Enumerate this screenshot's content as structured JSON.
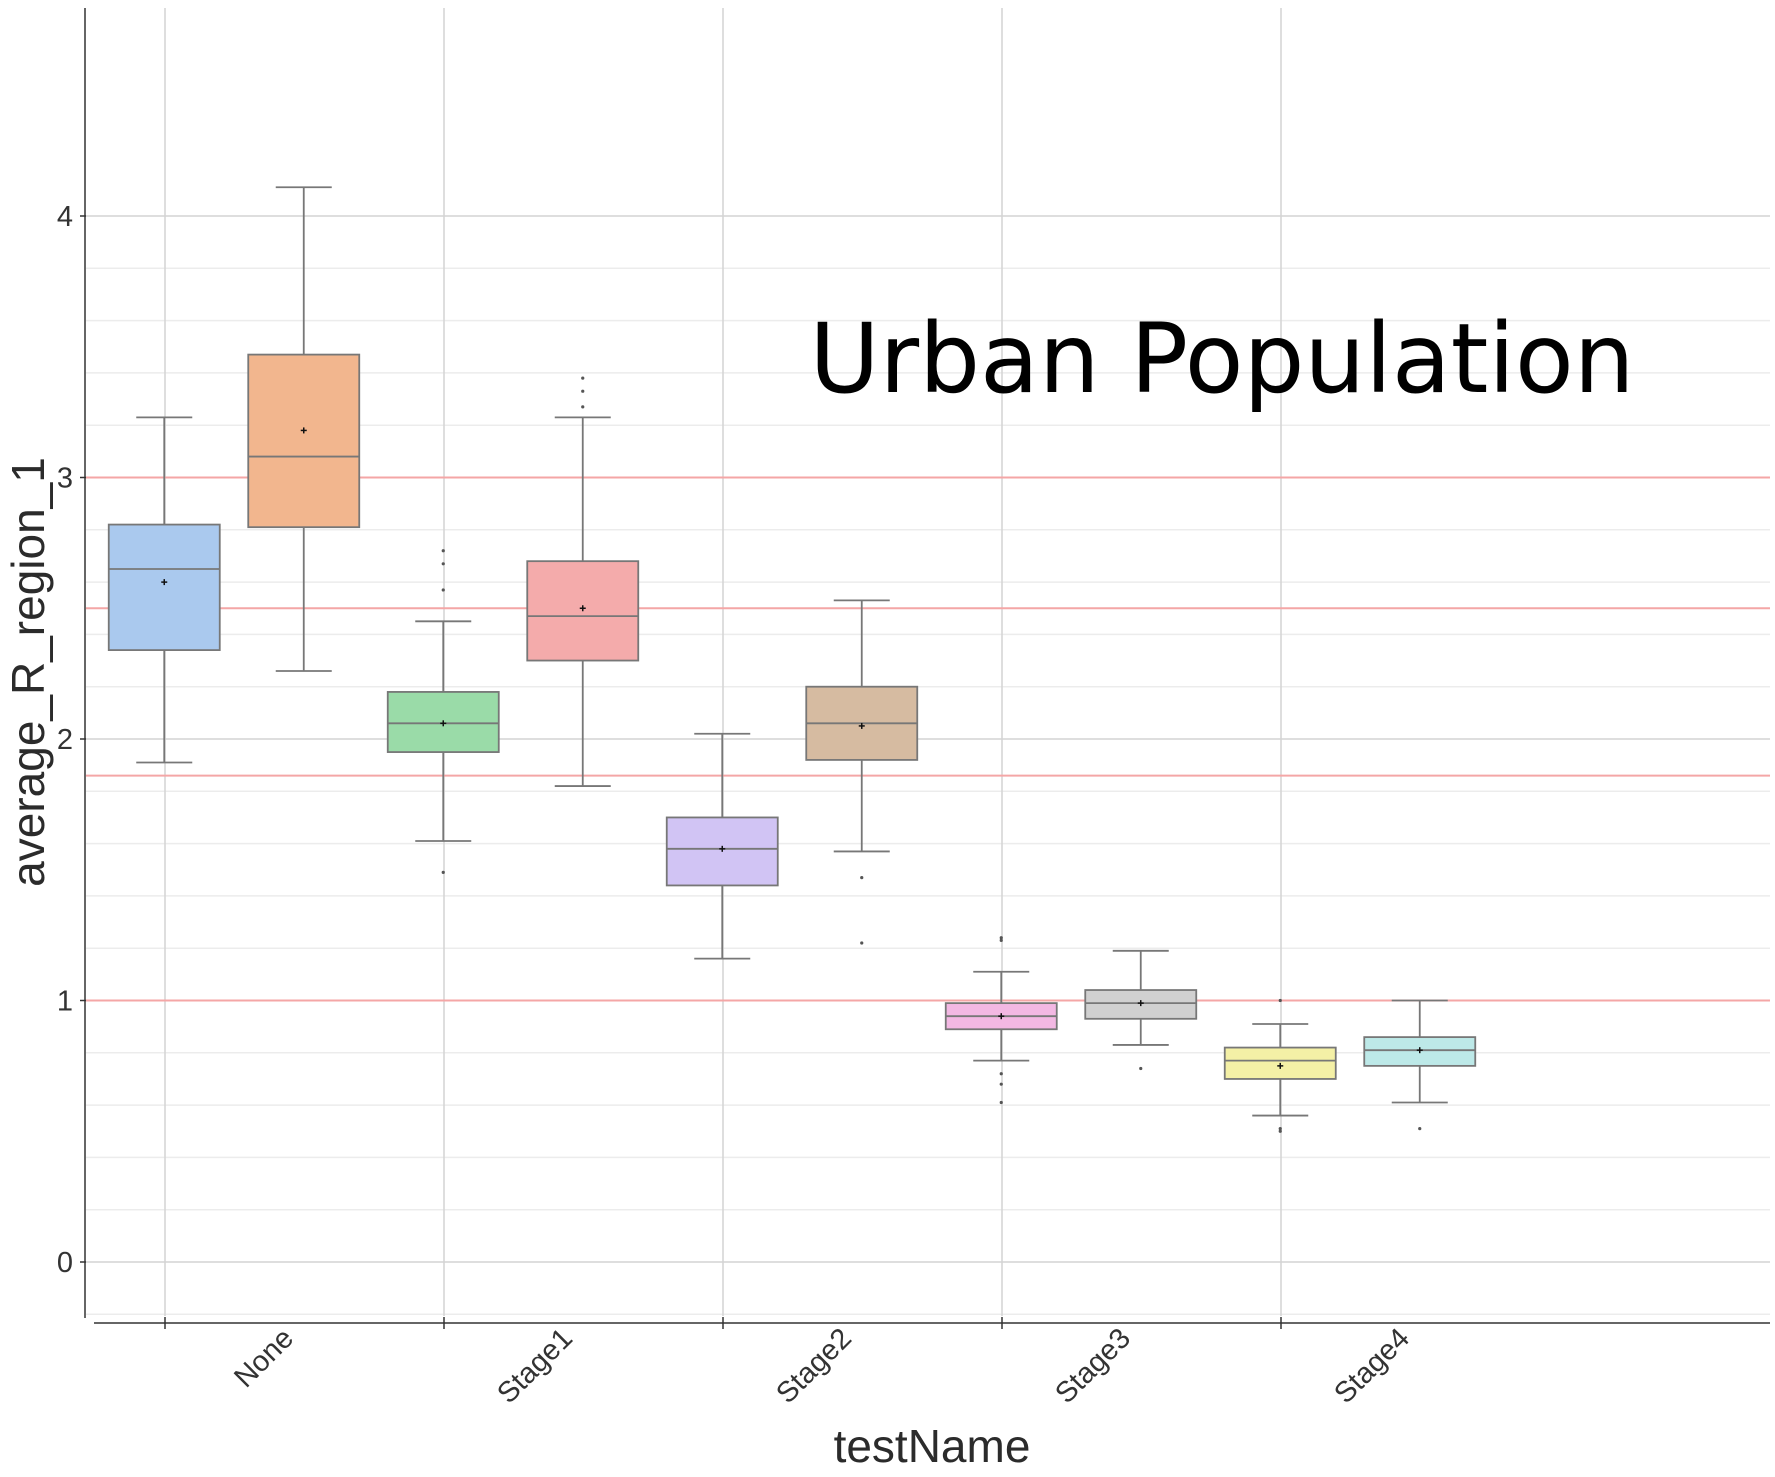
{
  "chart_data": {
    "type": "box",
    "title": "",
    "xlabel": "testName",
    "ylabel": "average_R_region_1",
    "annotation": "Urban Population",
    "categories": [
      "None",
      "Stage1",
      "Stage2",
      "Stage3",
      "Stage4"
    ],
    "yticks": [
      0,
      1,
      2,
      3,
      4
    ],
    "ylim": [
      -0.2,
      4.75
    ],
    "grid": true,
    "reference_lines": [
      1,
      1.86,
      2.5,
      3
    ],
    "reference_line_color": "#f4a6a6",
    "boxes": [
      {
        "category": "None",
        "position": 0,
        "color": "#aac9ee",
        "whisker_low": 1.91,
        "q1": 2.34,
        "median": 2.65,
        "q3": 2.82,
        "whisker_high": 3.23,
        "mean": 2.6,
        "outliers": []
      },
      {
        "category": "None",
        "position": 1,
        "color": "#f2b68e",
        "whisker_low": 2.26,
        "q1": 2.81,
        "median": 3.08,
        "q3": 3.47,
        "whisker_high": 4.11,
        "mean": 3.18,
        "outliers": []
      },
      {
        "category": "Stage1",
        "position": 0,
        "color": "#9adba8",
        "whisker_low": 1.61,
        "q1": 1.95,
        "median": 2.06,
        "q3": 2.18,
        "whisker_high": 2.45,
        "mean": 2.06,
        "outliers": [
          2.72,
          2.67,
          2.57,
          1.49
        ]
      },
      {
        "category": "Stage1",
        "position": 1,
        "color": "#f4abab",
        "whisker_low": 1.82,
        "q1": 2.3,
        "median": 2.47,
        "q3": 2.68,
        "whisker_high": 3.23,
        "mean": 2.5,
        "outliers": [
          3.38,
          3.33,
          3.27
        ]
      },
      {
        "category": "Stage2",
        "position": 0,
        "color": "#d1c4f4",
        "whisker_low": 1.16,
        "q1": 1.44,
        "median": 1.58,
        "q3": 1.7,
        "whisker_high": 2.02,
        "mean": 1.58,
        "outliers": []
      },
      {
        "category": "Stage2",
        "position": 1,
        "color": "#d6bba1",
        "whisker_low": 1.57,
        "q1": 1.92,
        "median": 2.06,
        "q3": 2.2,
        "whisker_high": 2.53,
        "mean": 2.05,
        "outliers": [
          1.47,
          1.22
        ]
      },
      {
        "category": "Stage3",
        "position": 0,
        "color": "#f3b8e3",
        "whisker_low": 0.77,
        "q1": 0.89,
        "median": 0.94,
        "q3": 0.99,
        "whisker_high": 1.11,
        "mean": 0.94,
        "outliers": [
          1.24,
          1.23,
          0.72,
          0.68,
          0.61
        ]
      },
      {
        "category": "Stage3",
        "position": 1,
        "color": "#d0d0d0",
        "whisker_low": 0.83,
        "q1": 0.93,
        "median": 0.99,
        "q3": 1.04,
        "whisker_high": 1.19,
        "mean": 0.99,
        "outliers": [
          0.74
        ]
      },
      {
        "category": "Stage4",
        "position": 0,
        "color": "#f4f0a6",
        "whisker_low": 0.56,
        "q1": 0.7,
        "median": 0.77,
        "q3": 0.82,
        "whisker_high": 0.91,
        "mean": 0.75,
        "outliers": [
          1.0,
          0.51,
          0.5
        ]
      },
      {
        "category": "Stage4",
        "position": 1,
        "color": "#bde9e8",
        "whisker_low": 0.61,
        "q1": 0.75,
        "median": 0.81,
        "q3": 0.86,
        "whisker_high": 1.0,
        "mean": 0.81,
        "outliers": [
          0.51
        ]
      }
    ]
  }
}
